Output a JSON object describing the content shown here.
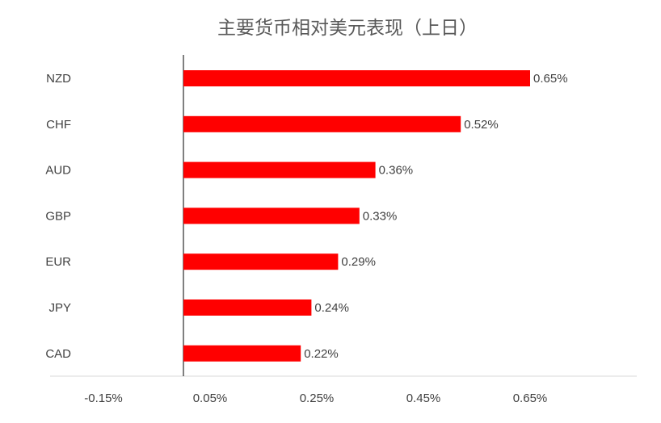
{
  "chart_data": {
    "type": "bar",
    "orientation": "horizontal",
    "title": "主要货币相对美元表现（上日）",
    "categories": [
      "NZD",
      "CHF",
      "AUD",
      "GBP",
      "EUR",
      "JPY",
      "CAD"
    ],
    "values": [
      0.65,
      0.52,
      0.36,
      0.33,
      0.29,
      0.24,
      0.22
    ],
    "value_labels": [
      "0.65%",
      "0.52%",
      "0.36%",
      "0.33%",
      "0.29%",
      "0.24%",
      "0.22%"
    ],
    "x_ticks": [
      "-0.15%",
      "0.05%",
      "0.25%",
      "0.45%",
      "0.65%"
    ],
    "x_tick_values": [
      -0.15,
      0.05,
      0.25,
      0.45,
      0.65
    ],
    "xlim": [
      -0.25,
      0.85
    ],
    "bar_color": "#ff0000",
    "grid": false,
    "legend": "none"
  }
}
